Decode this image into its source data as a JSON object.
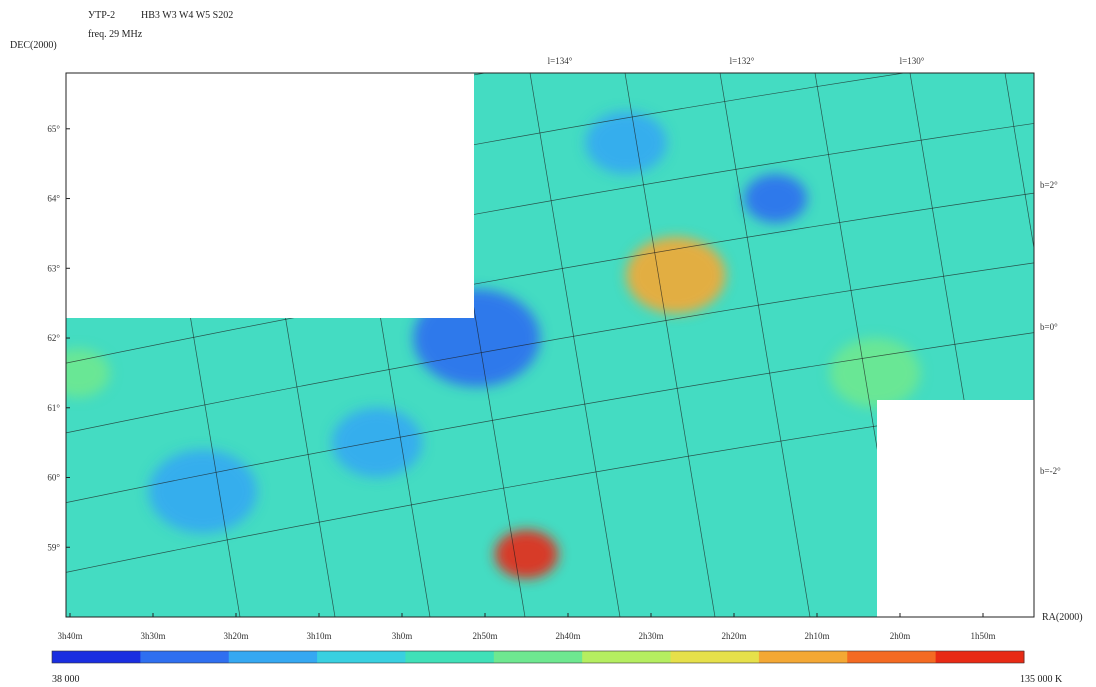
{
  "header": {
    "instrument": "УТР-2",
    "objects": "HB3 W3 W4 W5 S202",
    "freq": "freq. 29 MHz"
  },
  "chart_data": {
    "type": "heatmap",
    "title": "",
    "xlabel": "RA(2000)",
    "ylabel": "DEC(2000)",
    "x_ticks": [
      "3h40m",
      "3h30m",
      "3h20m",
      "3h10m",
      "3h0m",
      "2h50m",
      "2h40m",
      "2h30m",
      "2h20m",
      "2h10m",
      "2h0m",
      "1h50m"
    ],
    "y_ticks": [
      "65°",
      "64°",
      "63°",
      "62°",
      "61°",
      "60°",
      "59°"
    ],
    "y_range": [
      58.0,
      65.8
    ],
    "galactic_longitude_labels": [
      "l=134°",
      "l=132°",
      "l=130°"
    ],
    "galactic_latitude_labels": [
      "b=2°",
      "b=0°",
      "b=-2°"
    ],
    "colorbar": {
      "min_label": "38 000",
      "max_label": "135 000 K",
      "min": 38000,
      "max": 135000,
      "colors": [
        "#1a2ee0",
        "#2f6ff0",
        "#35a8f2",
        "#39d0e0",
        "#40e0b8",
        "#6ee890",
        "#b5ee60",
        "#e6e04a",
        "#f4a834",
        "#f46a22",
        "#e82a14"
      ]
    },
    "blobs": [
      {
        "ra_h": 2.75,
        "dec": 58.9,
        "v": 135000,
        "s": 0.35
      },
      {
        "ra_h": 2.45,
        "dec": 62.9,
        "v": 120000,
        "s": 0.55
      },
      {
        "ra_h": 2.85,
        "dec": 62.0,
        "v": 52000,
        "s": 0.7
      },
      {
        "ra_h": 3.05,
        "dec": 60.5,
        "v": 55000,
        "s": 0.5
      },
      {
        "ra_h": 3.4,
        "dec": 59.8,
        "v": 58000,
        "s": 0.6
      },
      {
        "ra_h": 2.25,
        "dec": 64.0,
        "v": 52000,
        "s": 0.35
      },
      {
        "ra_h": 2.55,
        "dec": 64.8,
        "v": 55000,
        "s": 0.45
      },
      {
        "ra_h": 3.65,
        "dec": 61.5,
        "v": 85000,
        "s": 0.35
      },
      {
        "ra_h": 2.05,
        "dec": 61.5,
        "v": 85000,
        "s": 0.5
      }
    ]
  }
}
